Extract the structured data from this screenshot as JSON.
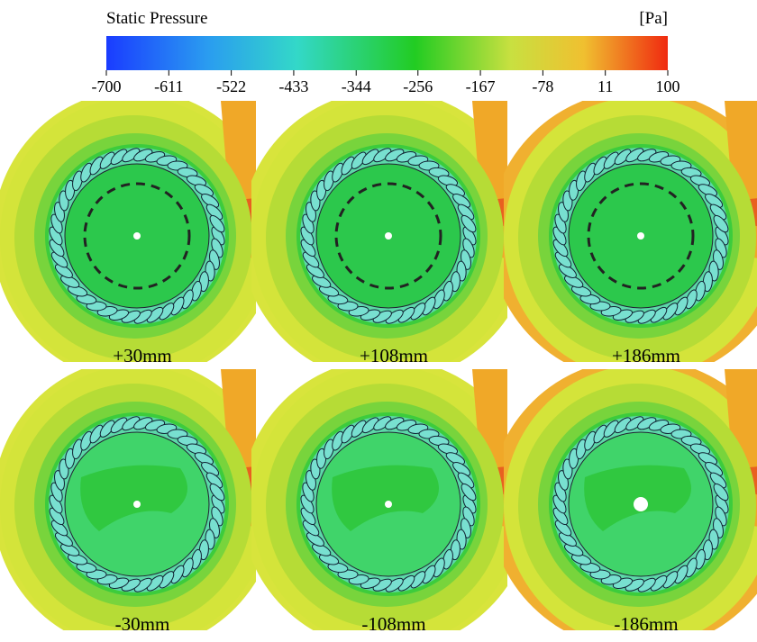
{
  "colorbar": {
    "title": "Static Pressure",
    "unit": "[Pa]",
    "ticks": [
      -700,
      -611,
      -522,
      -433,
      -344,
      -256,
      -167,
      -78,
      11,
      100
    ]
  },
  "panels": [
    {
      "label": "+30mm"
    },
    {
      "label": "+108mm"
    },
    {
      "label": "+186mm"
    },
    {
      "label": "-30mm"
    },
    {
      "label": "-108mm"
    },
    {
      "label": "-186mm"
    }
  ]
}
